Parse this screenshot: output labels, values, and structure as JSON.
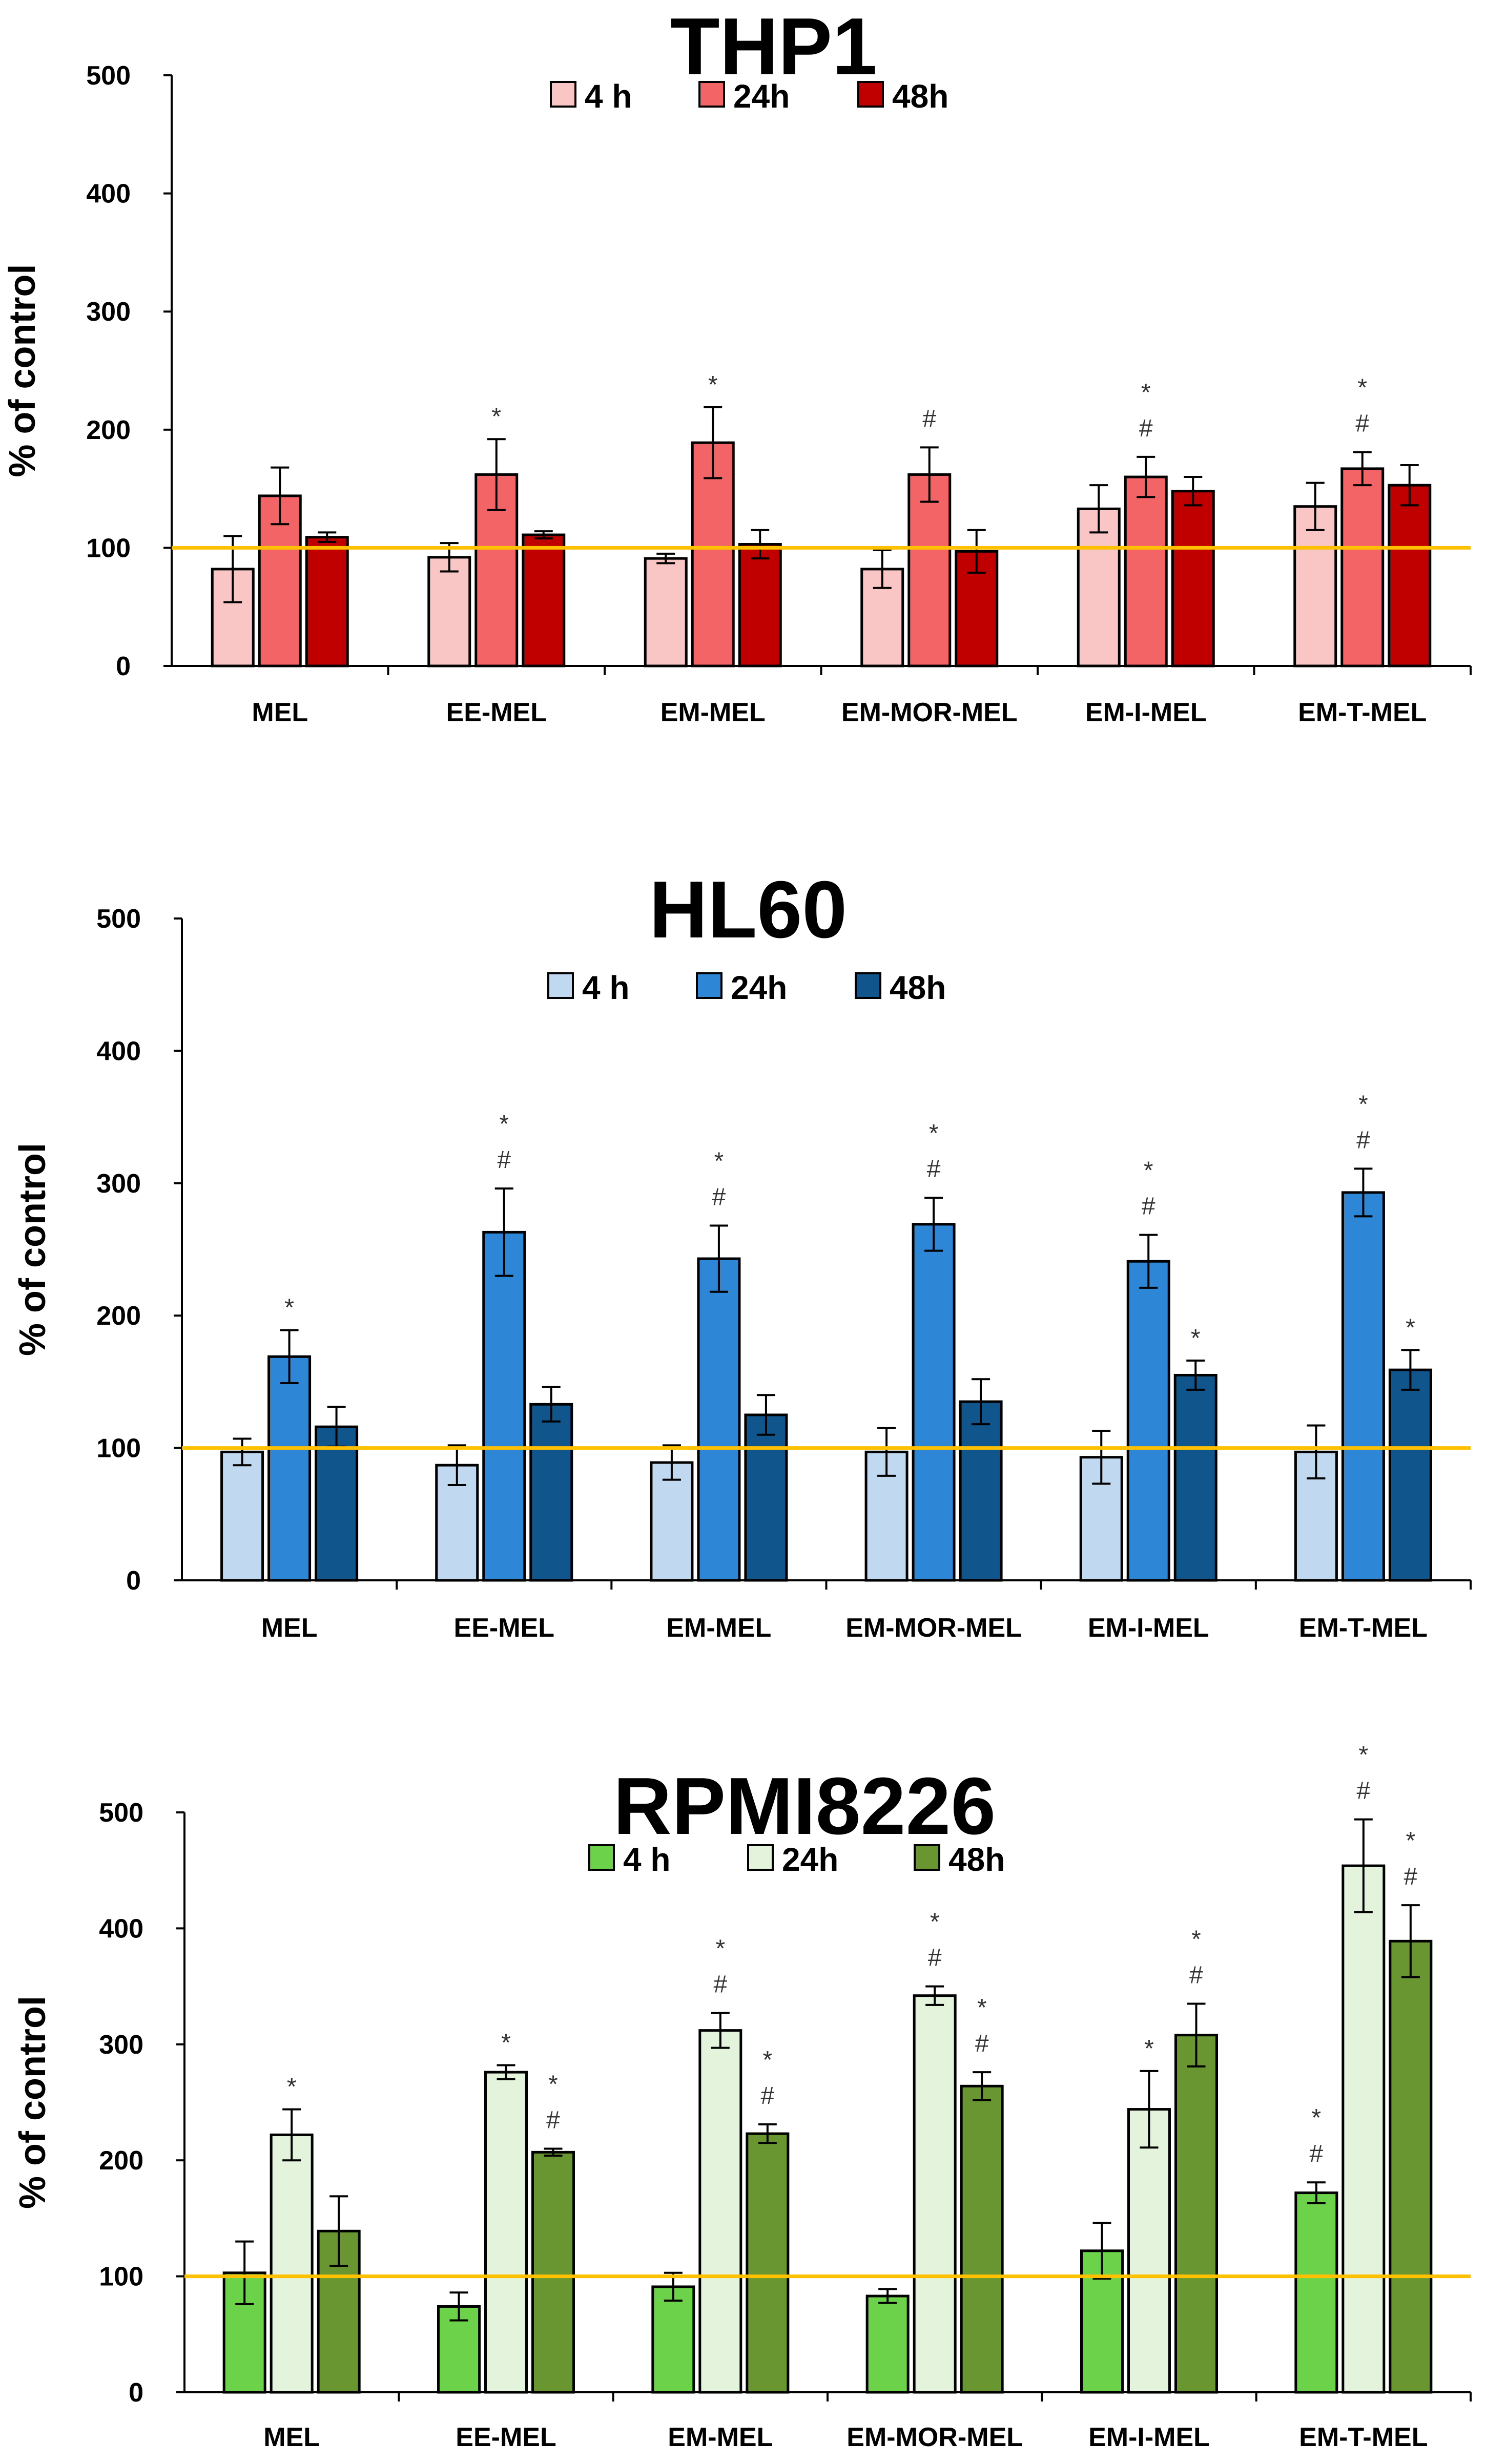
{
  "chart_data": [
    {
      "type": "bar",
      "title": "THP1",
      "ylabel": "% of control",
      "xlabel": "",
      "ylim": [
        0,
        500
      ],
      "yticks": [
        0,
        100,
        200,
        300,
        400,
        500
      ],
      "reference_line": 100,
      "categories": [
        "MEL",
        "EE-MEL",
        "EM-MEL",
        "EM-MOR-MEL",
        "EM-I-MEL",
        "EM-T-MEL"
      ],
      "series": [
        {
          "name": "4 h",
          "color": "#F9C6C5",
          "values": [
            82,
            92,
            91,
            82,
            133,
            135
          ],
          "errors": [
            28,
            12,
            4,
            16,
            20,
            20
          ],
          "marks": [
            "",
            "",
            "",
            "",
            "",
            ""
          ]
        },
        {
          "name": "24h",
          "color": "#F26465",
          "values": [
            144,
            162,
            189,
            162,
            160,
            167
          ],
          "errors": [
            24,
            30,
            30,
            23,
            17,
            14
          ],
          "marks": [
            "",
            "*",
            "*",
            "#",
            "*\n#",
            "*\n#"
          ]
        },
        {
          "name": "48h",
          "color": "#C00000",
          "values": [
            109,
            111,
            103,
            97,
            148,
            153
          ],
          "errors": [
            4,
            3,
            12,
            18,
            12,
            17
          ],
          "marks": [
            "",
            "",
            "",
            "",
            "",
            ""
          ]
        }
      ],
      "legend_position": "top"
    },
    {
      "type": "bar",
      "title": "HL60",
      "ylabel": "% of control",
      "xlabel": "",
      "ylim": [
        0,
        500
      ],
      "yticks": [
        0,
        100,
        200,
        300,
        400,
        500
      ],
      "reference_line": 100,
      "categories": [
        "MEL",
        "EE-MEL",
        "EM-MEL",
        "EM-MOR-MEL",
        "EM-I-MEL",
        "EM-T-MEL"
      ],
      "series": [
        {
          "name": "4 h",
          "color": "#C0D8F0",
          "values": [
            97,
            87,
            89,
            97,
            93,
            97
          ],
          "errors": [
            10,
            15,
            13,
            18,
            20,
            20
          ],
          "marks": [
            "",
            "",
            "",
            "",
            "",
            ""
          ]
        },
        {
          "name": "24h",
          "color": "#2E86D6",
          "values": [
            169,
            263,
            243,
            269,
            241,
            293
          ],
          "errors": [
            20,
            33,
            25,
            20,
            20,
            18
          ],
          "marks": [
            "*",
            "*\n#",
            "*\n#",
            "*\n#",
            "*\n#",
            "*\n#"
          ]
        },
        {
          "name": "48h",
          "color": "#10558C",
          "values": [
            116,
            133,
            125,
            135,
            155,
            159
          ],
          "errors": [
            15,
            13,
            15,
            17,
            11,
            15
          ],
          "marks": [
            "",
            "",
            "",
            "",
            "*",
            "*"
          ]
        }
      ],
      "legend_position": "top"
    },
    {
      "type": "bar",
      "title": "RPMI8226",
      "ylabel": "% of control",
      "xlabel": "",
      "ylim": [
        0,
        500
      ],
      "yticks": [
        0,
        100,
        200,
        300,
        400,
        500
      ],
      "reference_line": 100,
      "categories": [
        "MEL",
        "EE-MEL",
        "EM-MEL",
        "EM-MOR-MEL",
        "EM-I-MEL",
        "EM-T-MEL"
      ],
      "series": [
        {
          "name": "4 h",
          "color": "#6BD24A",
          "values": [
            103,
            74,
            91,
            83,
            122,
            172
          ],
          "errors": [
            27,
            12,
            12,
            6,
            24,
            9
          ],
          "marks": [
            "",
            "",
            "",
            "",
            "",
            "*\n#"
          ]
        },
        {
          "name": "24h",
          "color": "#E3F3DC",
          "values": [
            222,
            276,
            312,
            342,
            244,
            454
          ],
          "errors": [
            22,
            6,
            15,
            8,
            33,
            40
          ],
          "marks": [
            "*",
            "*",
            "*\n#",
            "*\n#",
            "*",
            "*\n#"
          ]
        },
        {
          "name": "48h",
          "color": "#6A9632",
          "values": [
            139,
            207,
            223,
            264,
            308,
            389
          ],
          "errors": [
            30,
            3,
            8,
            12,
            27,
            31
          ],
          "marks": [
            "",
            "*\n#",
            "*\n#",
            "*\n#",
            "*\n#",
            "*\n#"
          ]
        }
      ],
      "legend_position": "top"
    }
  ],
  "style": {
    "reference_line_color": "#FFC000",
    "axis_color": "#000000"
  }
}
